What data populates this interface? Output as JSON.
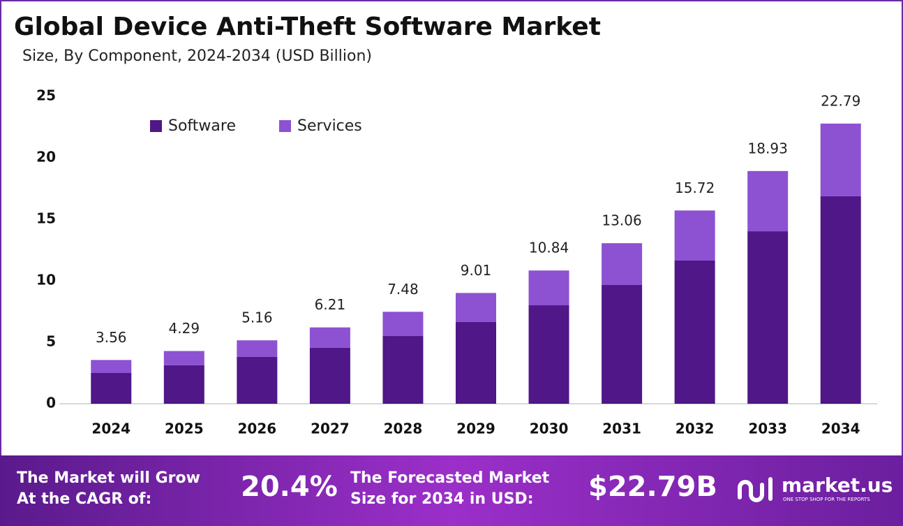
{
  "chart_data": {
    "type": "stacked-bar",
    "title": "Global Device Anti-Theft Software Market",
    "subtitle": "Size, By Component, 2024-2034 (USD Billion)",
    "categories": [
      "2024",
      "2025",
      "2026",
      "2027",
      "2028",
      "2029",
      "2030",
      "2031",
      "2032",
      "2033",
      "2034"
    ],
    "series": [
      {
        "name": "Software",
        "color": "#4f1787",
        "values": [
          2.5,
          3.13,
          3.81,
          4.55,
          5.51,
          6.65,
          8.01,
          9.66,
          11.65,
          14.03,
          16.88
        ]
      },
      {
        "name": "Services",
        "color": "#8c52d2",
        "values": [
          1.06,
          1.16,
          1.35,
          1.66,
          1.97,
          2.36,
          2.83,
          3.4,
          4.07,
          4.9,
          5.91
        ]
      }
    ],
    "totals": [
      3.56,
      4.29,
      5.16,
      6.21,
      7.48,
      9.01,
      10.84,
      13.06,
      15.72,
      18.93,
      22.79
    ],
    "ylim": [
      0,
      25
    ],
    "yticks": [
      0,
      5,
      10,
      15,
      20,
      25
    ],
    "grid": false,
    "legend": "top-left"
  },
  "footer": {
    "cagr_text": [
      "The Market will Grow",
      "At the CAGR of:"
    ],
    "cagr_value": "20.4%",
    "forecast_text": [
      "The Forecasted Market",
      "Size for 2034 in USD:"
    ],
    "forecast_value": "$22.79B",
    "brand": "market.us",
    "tagline": "ONE STOP SHOP FOR THE REPORTS"
  }
}
